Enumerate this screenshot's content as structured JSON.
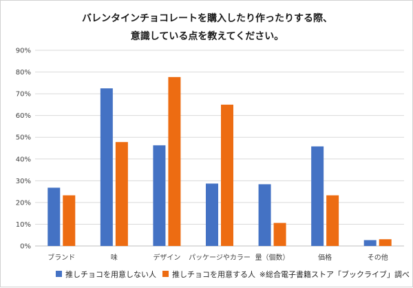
{
  "chart_data": {
    "type": "bar",
    "title_lines": [
      "バレンタインチョコレートを購入したり作ったりする際、",
      "意識している点を教えてください。"
    ],
    "categories": [
      "ブランド",
      "味",
      "デザイン",
      "パッケージやカラー",
      "量（個数）",
      "価格",
      "その他"
    ],
    "series": [
      {
        "name": "推しチョコを用意しない人",
        "color": "#4472C4",
        "values": [
          26.8,
          72.5,
          46.3,
          28.7,
          28.4,
          45.8,
          2.7
        ]
      },
      {
        "name": "推しチョコを用意する人",
        "color": "#ED6C12",
        "values": [
          23.3,
          47.8,
          77.7,
          65.0,
          10.6,
          23.3,
          3.1
        ]
      }
    ],
    "ylim": [
      0,
      90
    ],
    "yticks": [
      0,
      10,
      20,
      30,
      40,
      50,
      60,
      70,
      80,
      90
    ],
    "ytick_labels": [
      "0%",
      "10%",
      "20%",
      "30%",
      "40%",
      "50%",
      "60%",
      "70%",
      "80%",
      "90%"
    ],
    "gridlines": true,
    "legend_position": "bottom",
    "source_note": "※総合電子書籍ストア「ブックライブ」調べ"
  }
}
